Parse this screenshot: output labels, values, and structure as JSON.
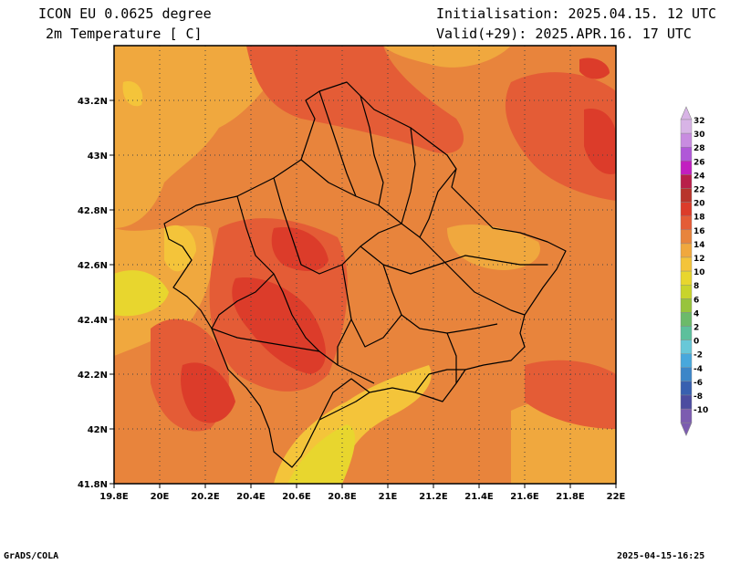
{
  "header": {
    "model": "ICON EU 0.0625 degree",
    "variable": "2m Temperature [ C]",
    "initialisation": "Initialisation: 2025.04.15. 12 UTC",
    "valid": "Valid(+29): 2025.APR.16. 17 UTC"
  },
  "map": {
    "lon_range": [
      19.8,
      22.0
    ],
    "lat_range": [
      41.8,
      43.4
    ],
    "lon_ticks": [
      "19.8E",
      "20E",
      "20.2E",
      "20.4E",
      "20.6E",
      "20.8E",
      "21E",
      "21.2E",
      "21.4E",
      "21.6E",
      "21.8E",
      "22E"
    ],
    "lat_ticks": [
      "41.8N",
      "42N",
      "42.2N",
      "42.4N",
      "42.6N",
      "42.8N",
      "43N",
      "43.2N"
    ],
    "grid": true,
    "region": "Kosovo and surroundings"
  },
  "colorbar": {
    "labels": [
      "32",
      "30",
      "28",
      "26",
      "24",
      "22",
      "20",
      "18",
      "16",
      "14",
      "12",
      "10",
      "8",
      "6",
      "4",
      "2",
      "0",
      "-2",
      "-4",
      "-6",
      "-8",
      "-10"
    ],
    "colors": [
      "#d8b4e6",
      "#c88ce0",
      "#b058d8",
      "#c21fc0",
      "#b8204a",
      "#b8342b",
      "#dc3c2a",
      "#e45c36",
      "#e8843c",
      "#f0a83e",
      "#f4c43a",
      "#e8d62e",
      "#c8d42c",
      "#98c43c",
      "#6cba6a",
      "#5cc09c",
      "#68c8d8",
      "#48a8dc",
      "#3c86c8",
      "#3860b0",
      "#4c4ca0",
      "#7c5cb0"
    ]
  },
  "footer": {
    "left": "GrADS/COLA",
    "right": "2025-04-15-16:25"
  }
}
